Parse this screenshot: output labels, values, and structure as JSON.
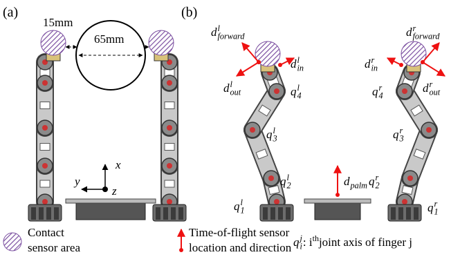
{
  "panels": [
    {
      "label": "(a)"
    },
    {
      "label": "(b)"
    }
  ],
  "panel_a": {
    "sensor_size": "15mm",
    "gap": "65mm",
    "axes": {
      "x": "x",
      "y": "y",
      "z": "z"
    }
  },
  "panel_b": {
    "labels": [
      {
        "base": "d",
        "sup": "l",
        "sub": "forward"
      },
      {
        "base": "d",
        "sup": "l",
        "sub": "in"
      },
      {
        "base": "d",
        "sup": "l",
        "sub": "out"
      },
      {
        "base": "q",
        "sup": "l",
        "sub": "4"
      },
      {
        "base": "q",
        "sup": "l",
        "sub": "3"
      },
      {
        "base": "q",
        "sup": "l",
        "sub": "2"
      },
      {
        "base": "q",
        "sup": "l",
        "sub": "1"
      },
      {
        "base": "d",
        "sub": "palm"
      },
      {
        "base": "q",
        "sup": "r",
        "sub": "2"
      },
      {
        "base": "q",
        "sup": "r",
        "sub": "1"
      },
      {
        "base": "q",
        "sup": "r",
        "sub": "3"
      },
      {
        "base": "q",
        "sup": "r",
        "sub": "4"
      },
      {
        "base": "d",
        "sup": "r",
        "sub": "in"
      },
      {
        "base": "d",
        "sup": "r",
        "sub": "out"
      },
      {
        "base": "d",
        "sup": "r",
        "sub": "forward"
      }
    ]
  },
  "legend": {
    "contact": [
      "Contact",
      "sensor area"
    ],
    "tof": [
      "Time-of-flight sensor",
      "location and direction"
    ],
    "joint": {
      "base": "q",
      "sup": "j",
      "sub": "i",
      "text": ": i",
      "text_sup": "th",
      "text_rest": " joint axis of finger j"
    }
  }
}
